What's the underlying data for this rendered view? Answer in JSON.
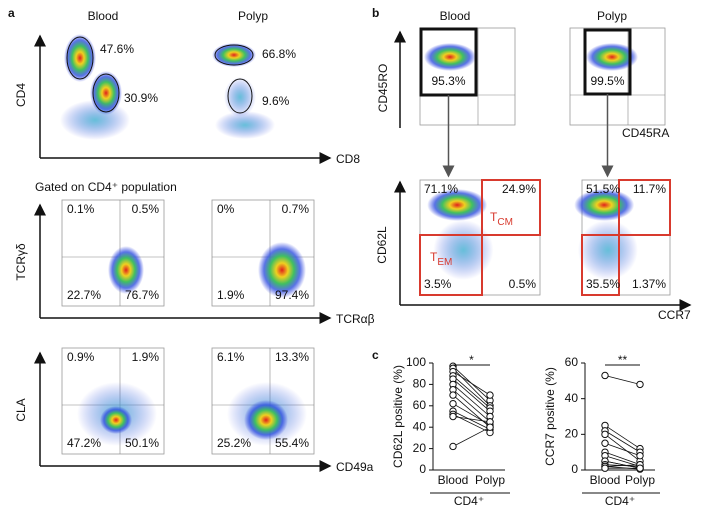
{
  "panel_a": {
    "label": "a",
    "columns": [
      "Blood",
      "Polyp"
    ],
    "gate_caption": "Gated on CD4⁺ population",
    "rows": [
      {
        "y_axis": "CD4",
        "x_axis": "CD8",
        "blood": [
          "47.6%",
          "30.9%"
        ],
        "polyp": [
          "66.8%",
          "9.6%"
        ]
      },
      {
        "y_axis": "TCRγδ",
        "x_axis": "TCRαβ",
        "blood": [
          "0.1%",
          "0.5%",
          "22.7%",
          "76.7%"
        ],
        "polyp": [
          "0%",
          "0.7%",
          "1.9%",
          "97.4%"
        ]
      },
      {
        "y_axis": "CLA",
        "x_axis": "CD49a",
        "blood": [
          "0.9%",
          "1.9%",
          "47.2%",
          "50.1%"
        ],
        "polyp": [
          "6.1%",
          "13.3%",
          "25.2%",
          "55.4%"
        ]
      }
    ]
  },
  "panel_b": {
    "label": "b",
    "columns": [
      "Blood",
      "Polyp"
    ],
    "top": {
      "y_axis": "CD45RO",
      "x_axis": "CD45RA",
      "blood": "95.3%",
      "polyp": "99.5%"
    },
    "bottom": {
      "y_axis": "CD62L",
      "x_axis": "CCR7",
      "blood": [
        "71.1%",
        "24.9%",
        "3.5%",
        "0.5%"
      ],
      "polyp": [
        "51.5%",
        "11.7%",
        "35.5%",
        "1.37%"
      ],
      "tcm": {
        "main": "T",
        "sub": "CM"
      },
      "tem": {
        "main": "T",
        "sub": "EM"
      }
    }
  },
  "panel_c": {
    "label": "c",
    "charts": [
      {
        "type": "paired-dot",
        "y_label": "CD62L positive (%)",
        "categories": [
          "Blood",
          "Polyp"
        ],
        "group_label": "CD4⁺",
        "significance": "*",
        "ylim": [
          0,
          100
        ],
        "yticks": [
          0,
          20,
          40,
          60,
          80,
          100
        ],
        "values": [
          [
            97,
            95,
            92,
            88,
            85,
            80,
            75,
            70,
            62,
            55,
            52,
            50,
            22
          ],
          [
            65,
            60,
            70,
            58,
            55,
            50,
            45,
            40,
            42,
            38,
            35,
            45,
            40
          ]
        ]
      },
      {
        "type": "paired-dot",
        "y_label": "CCR7 positive (%)",
        "categories": [
          "Blood",
          "Polyp"
        ],
        "group_label": "CD4⁺",
        "significance": "**",
        "ylim": [
          0,
          60
        ],
        "yticks": [
          0,
          20,
          40,
          60
        ],
        "values": [
          [
            53,
            25,
            22,
            20,
            15,
            10,
            8,
            5,
            5,
            3,
            2,
            2,
            1
          ],
          [
            48,
            12,
            10,
            5,
            8,
            3,
            2,
            1,
            1,
            2,
            0.5,
            3,
            1
          ]
        ]
      }
    ]
  }
}
